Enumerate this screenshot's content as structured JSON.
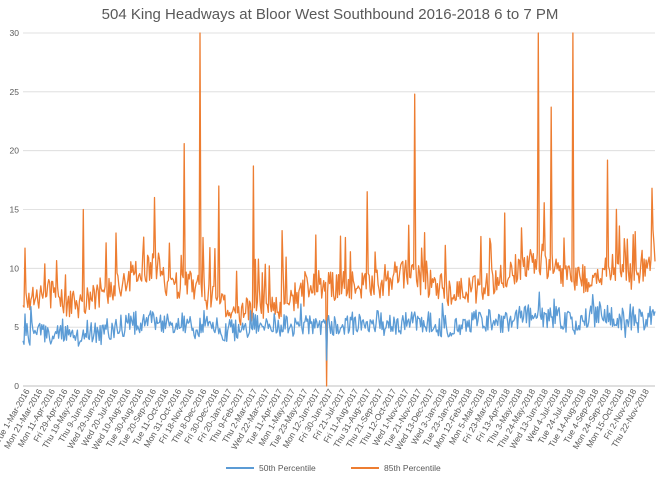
{
  "chart_data": {
    "type": "line",
    "title": "504 King Headways at Bloor West Southbound 2016-2018 6 to 7 PM",
    "xlabel": "",
    "ylabel": "",
    "ylim": [
      0,
      30
    ],
    "yticks": [
      "0",
      "5",
      "10",
      "15",
      "20",
      "25",
      "30"
    ],
    "grid": true,
    "legend_position": "bottom",
    "x_tick_labels": [
      "Tue 1-Mar-2016",
      "Mon 21-Mar-2016",
      "Mon 11-Apr-2016",
      "Fri 29-Apr-2016",
      "Thu 19-May-2016",
      "Thu 9-Jun-2016",
      "Wed 29-Jun-2016",
      "Wed 20-Jul-2016",
      "Wed 10-Aug-2016",
      "Tue 30-Aug-2016",
      "Tue 20-Sep-2016",
      "Tue 11-Oct-2016",
      "Mon 31-Oct-2016",
      "Fri 18-Nov-2016",
      "Thu 8-Dec-2016",
      "Fri 30-Dec-2016",
      "Fri 20-Jan-2017",
      "Thu 9-Feb-2017",
      "Thu 2-Mar-2017",
      "Wed 22-Mar-2017",
      "Tue 11-Apr-2017",
      "Mon 1-May-2017",
      "Tue 23-May-2017",
      "Mon 12-Jun-2017",
      "Fri 30-Jun-2017",
      "Fri 21-Jul-2017",
      "Fri 11-Aug-2017",
      "Thu 31-Aug-2017",
      "Thu 21-Sep-2017",
      "Thu 12-Oct-2017",
      "Wed 1-Nov-2017",
      "Tue 21-Nov-2017",
      "Wed 13-Dec-2017",
      "Wed 3-Jan-2018",
      "Tue 23-Jan-2018",
      "Mon 12-Feb-2018",
      "Mon 5-Mar-2018",
      "Fri 23-Mar-2018",
      "Fri 13-Apr-2018",
      "Thu 3-May-2018",
      "Thu 24-May-2018",
      "Wed 13-Jun-2018",
      "Wed 4-Jul-2018",
      "Tue 24-Jul-2018",
      "Tue 14-Aug-2018",
      "Tue 4-Sep-2018",
      "Mon 24-Sep-2018",
      "Mon 15-Oct-2018",
      "Fri 2-Nov-2018",
      "Thu 22-Nov-2018"
    ],
    "series": [
      {
        "name": "50th Percentile",
        "color": "#5b9bd5",
        "values": [
          4.3,
          4.6,
          4.5,
          4.9,
          4.2,
          4.8,
          4.4,
          5.0,
          5.2,
          5.4,
          5.6,
          5.2,
          5.3,
          5.1,
          4.9,
          5.0,
          4.7,
          4.9,
          5.4,
          5.1,
          5.2,
          4.8,
          5.0,
          5.3,
          5.1,
          5.4,
          5.2,
          5.5,
          5.3,
          5.1,
          5.4,
          5.6,
          5.3,
          5.0,
          5.2,
          5.5,
          5.6,
          5.3,
          5.8,
          6.0,
          5.7,
          5.9,
          5.6,
          5.3,
          5.8,
          6.3,
          5.9,
          5.4,
          5.6,
          6.1
        ],
        "range": [
          2.5,
          11.5
        ]
      },
      {
        "name": "85th Percentile",
        "color": "#ed7d31",
        "values": [
          6.5,
          7.5,
          8.0,
          7.2,
          6.8,
          7.4,
          7.9,
          8.6,
          9.1,
          9.6,
          10.4,
          9.0,
          8.5,
          8.9,
          8.0,
          7.0,
          6.5,
          6.2,
          6.9,
          7.1,
          6.8,
          7.6,
          8.2,
          8.8,
          8.4,
          8.6,
          8.3,
          8.5,
          8.7,
          9.2,
          9.6,
          8.9,
          8.4,
          8.1,
          8.0,
          8.3,
          8.5,
          9.2,
          9.8,
          10.4,
          10.6,
          10.1,
          9.6,
          9.3,
          9.0,
          9.8,
          10.1,
          9.3,
          9.5,
          11.0
        ],
        "range": [
          0,
          30
        ],
        "peaks": [
          {
            "date": "Wed 11-May-2016",
            "value": 15.0
          },
          {
            "date": "Wed 20-Sep-2016",
            "value": 20.6
          },
          {
            "date": "Thu 6-Oct-2016",
            "value": 30.0
          },
          {
            "date": "Thu 23-Nov-2016",
            "value": 17.0
          },
          {
            "date": "Tue 7-Feb-2017",
            "value": 18.7
          },
          {
            "date": "Mon 12-Jun-2017",
            "value": 0.0
          },
          {
            "date": "Wed 26-Jul-2017",
            "value": 16.5
          },
          {
            "date": "Thu 9-Nov-2017",
            "value": 24.8
          },
          {
            "date": "Mon 7-May-2018",
            "value": 30.0
          },
          {
            "date": "Tue 19-Jun-2018",
            "value": 23.7
          },
          {
            "date": "Wed 25-Jul-2018",
            "value": 30.0
          },
          {
            "date": "Tue 25-Sep-2018",
            "value": 19.2
          },
          {
            "date": "Fri 30-Nov-2018",
            "value": 16.8
          }
        ]
      }
    ]
  }
}
